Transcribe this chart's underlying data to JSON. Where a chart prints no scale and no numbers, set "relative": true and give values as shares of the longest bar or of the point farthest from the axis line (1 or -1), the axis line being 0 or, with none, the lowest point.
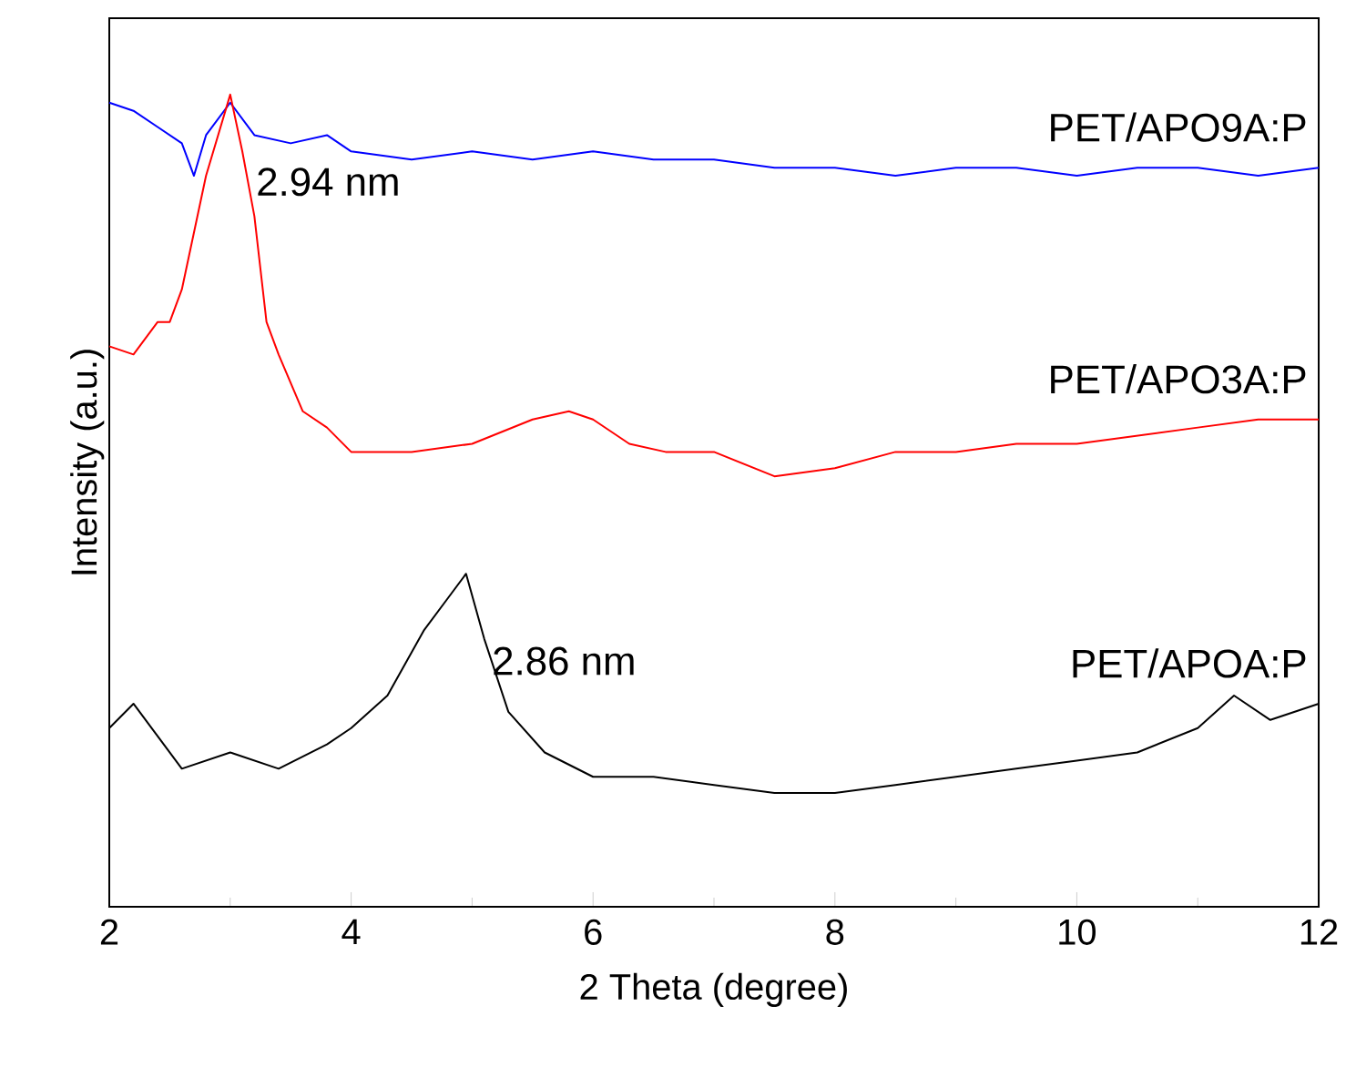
{
  "chart_data": {
    "type": "line",
    "relative": true,
    "xlabel": "2 Theta (degree)",
    "ylabel": "Intensity (a.u.)",
    "xlim": [
      2,
      12
    ],
    "xticks": [
      2,
      4,
      6,
      8,
      10,
      12
    ],
    "annotations": [
      {
        "text": "2.94 nm",
        "x": 3.0,
        "y": 1.0
      },
      {
        "text": "2.86 nm",
        "x": 4.95,
        "y": 0.41
      }
    ],
    "series": [
      {
        "name": "PET/APO9A:P",
        "color": "#0000ff",
        "x": [
          2.0,
          2.2,
          2.4,
          2.6,
          2.7,
          2.8,
          3.0,
          3.2,
          3.5,
          3.8,
          4.0,
          4.5,
          5.0,
          5.5,
          6.0,
          6.5,
          7.0,
          7.5,
          8.0,
          8.5,
          9.0,
          9.5,
          10.0,
          10.5,
          11.0,
          11.5,
          12.0
        ],
        "values": [
          0.99,
          0.98,
          0.96,
          0.94,
          0.9,
          0.95,
          0.99,
          0.95,
          0.94,
          0.95,
          0.93,
          0.92,
          0.93,
          0.92,
          0.93,
          0.92,
          0.92,
          0.91,
          0.91,
          0.9,
          0.91,
          0.91,
          0.9,
          0.91,
          0.91,
          0.9,
          0.91
        ]
      },
      {
        "name": "PET/APO3A:P",
        "color": "#ff0000",
        "x": [
          2.0,
          2.2,
          2.4,
          2.5,
          2.6,
          2.7,
          2.8,
          2.9,
          3.0,
          3.1,
          3.2,
          3.3,
          3.4,
          3.6,
          3.8,
          4.0,
          4.5,
          5.0,
          5.5,
          5.8,
          6.0,
          6.3,
          6.6,
          7.0,
          7.5,
          8.0,
          8.5,
          9.0,
          9.5,
          10.0,
          10.5,
          11.0,
          11.5,
          12.0
        ],
        "values": [
          0.69,
          0.68,
          0.72,
          0.72,
          0.76,
          0.83,
          0.9,
          0.95,
          1.0,
          0.93,
          0.85,
          0.72,
          0.68,
          0.61,
          0.59,
          0.56,
          0.56,
          0.57,
          0.6,
          0.61,
          0.6,
          0.57,
          0.56,
          0.56,
          0.53,
          0.54,
          0.56,
          0.56,
          0.57,
          0.57,
          0.58,
          0.59,
          0.6,
          0.6
        ]
      },
      {
        "name": "PET/APOA:P",
        "color": "#000000",
        "x": [
          2.0,
          2.2,
          2.4,
          2.6,
          3.0,
          3.4,
          3.8,
          4.0,
          4.3,
          4.6,
          4.8,
          4.95,
          5.1,
          5.3,
          5.6,
          6.0,
          6.5,
          7.0,
          7.5,
          8.0,
          8.5,
          9.0,
          9.5,
          10.0,
          10.5,
          11.0,
          11.3,
          11.6,
          12.0
        ],
        "values": [
          0.22,
          0.25,
          0.21,
          0.17,
          0.19,
          0.17,
          0.2,
          0.22,
          0.26,
          0.34,
          0.38,
          0.41,
          0.33,
          0.24,
          0.19,
          0.16,
          0.16,
          0.15,
          0.14,
          0.14,
          0.15,
          0.16,
          0.17,
          0.18,
          0.19,
          0.22,
          0.26,
          0.23,
          0.25
        ]
      }
    ]
  }
}
